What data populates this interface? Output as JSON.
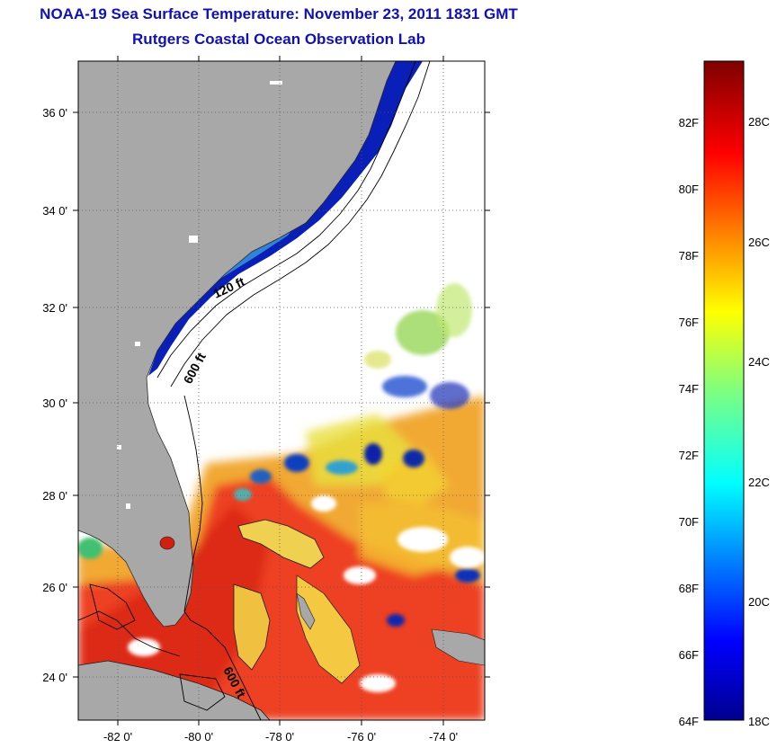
{
  "header": {
    "title": "NOAA-19 Sea Surface Temperature:  November 23, 2011 1831 GMT",
    "subtitle": "Rutgers Coastal Ocean Observation Lab"
  },
  "map": {
    "lat_ticks": [
      "36 0'",
      "34 0'",
      "32 0'",
      "30 0'",
      "28 0'",
      "26 0'",
      "24 0'"
    ],
    "lon_ticks": [
      "-82 0'",
      "-80 0'",
      "-78 0'",
      "-76 0'",
      "-74 0'"
    ],
    "isobath_labels": [
      "120 ft",
      "600 ft",
      "600 ft"
    ],
    "colors": {
      "land": "#a8a8a8",
      "cloud": "#ffffff",
      "cold": "#0a1fb8",
      "warm": "#e8331c"
    }
  },
  "colorbar": {
    "fahrenheit": [
      "82F",
      "80F",
      "78F",
      "76F",
      "74F",
      "72F",
      "70F",
      "68F",
      "66F",
      "64F"
    ],
    "celsius": [
      "28C",
      "26C",
      "24C",
      "22C",
      "20C",
      "18C"
    ],
    "range_c": [
      18,
      29.5
    ],
    "colormap": "jet"
  }
}
